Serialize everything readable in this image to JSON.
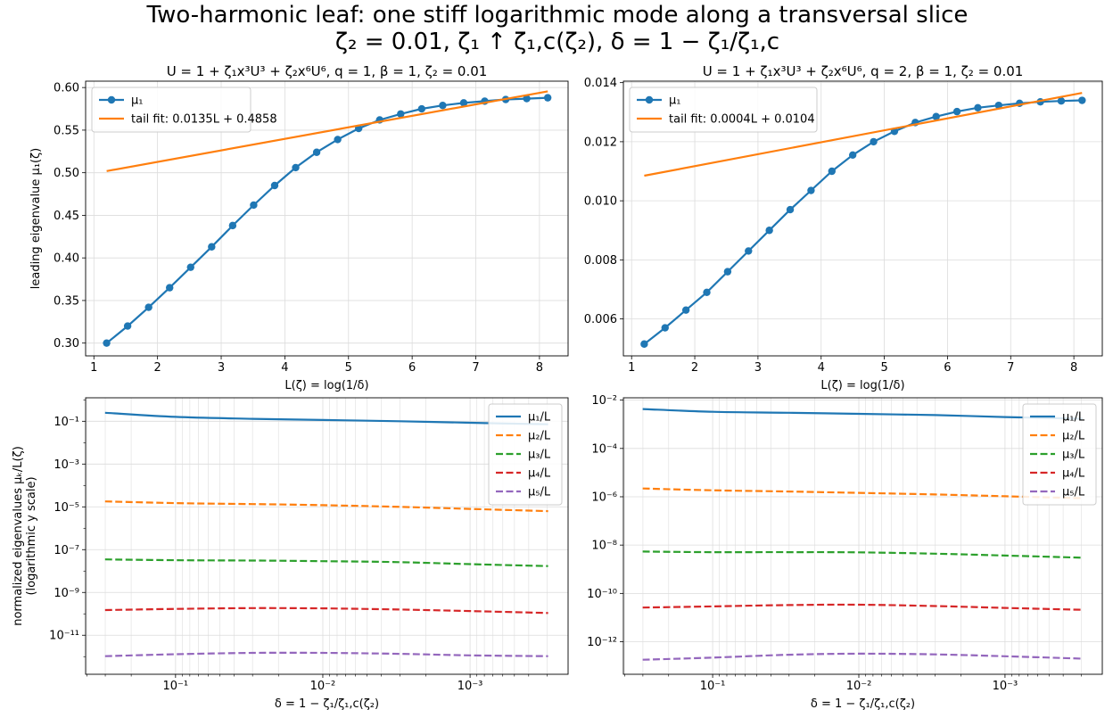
{
  "figure": {
    "suptitle_line1": "Two-harmonic leaf: one stiff logarithmic mode along a transversal slice",
    "suptitle_line2": "ζ₂ = 0.01, ζ₁ ↑ ζ₁,c(ζ₂), δ = 1 − ζ₁/ζ₁,c"
  },
  "chart_data": [
    {
      "type": "line",
      "title": "U = 1 + ζ₁x³U³ + ζ₂x⁶U⁶, q = 1, β = 1, ζ₂ = 0.01",
      "xlabel": "L(ζ) = log(1/δ)",
      "ylabel": "leading eigenvalue μ₁(ζ)",
      "xlim": [
        0.87,
        8.45
      ],
      "ylim": [
        0.285,
        0.6075
      ],
      "xticks": [
        1,
        2,
        3,
        4,
        5,
        6,
        7,
        8
      ],
      "xtick_labels": [
        "1",
        "2",
        "3",
        "4",
        "5",
        "6",
        "7",
        "8"
      ],
      "yticks": [
        0.3,
        0.35,
        0.4,
        0.45,
        0.5,
        0.55,
        0.6
      ],
      "ytick_labels": [
        "0.30",
        "0.35",
        "0.40",
        "0.45",
        "0.50",
        "0.55",
        "0.60"
      ],
      "grid": true,
      "legend_position": "top-left",
      "series": [
        {
          "name": "μ₁",
          "color": "#1f77b4",
          "markers": true,
          "x": [
            1.2,
            1.53,
            1.86,
            2.19,
            2.52,
            2.85,
            3.18,
            3.51,
            3.84,
            4.17,
            4.5,
            4.83,
            5.16,
            5.49,
            5.82,
            6.15,
            6.48,
            6.81,
            7.14,
            7.47,
            7.8,
            8.13
          ],
          "y": [
            0.3,
            0.32,
            0.342,
            0.365,
            0.389,
            0.413,
            0.438,
            0.462,
            0.485,
            0.506,
            0.524,
            0.539,
            0.552,
            0.562,
            0.569,
            0.575,
            0.579,
            0.582,
            0.584,
            0.586,
            0.587,
            0.588
          ]
        },
        {
          "name": "tail fit: 0.0135L + 0.4858",
          "color": "#ff7f0e",
          "markers": false,
          "x": [
            1.2,
            8.13
          ],
          "y": [
            0.502,
            0.5956
          ]
        }
      ]
    },
    {
      "type": "line",
      "title": "U = 1 + ζ₁x³U³ + ζ₂x⁶U⁶, q = 2, β = 1, ζ₂ = 0.01",
      "xlabel": "L(ζ) = log(1/δ)",
      "ylabel": "",
      "xlim": [
        0.87,
        8.45
      ],
      "ylim": [
        0.00475,
        0.01405
      ],
      "xticks": [
        1,
        2,
        3,
        4,
        5,
        6,
        7,
        8
      ],
      "xtick_labels": [
        "1",
        "2",
        "3",
        "4",
        "5",
        "6",
        "7",
        "8"
      ],
      "yticks": [
        0.006,
        0.008,
        0.01,
        0.012,
        0.014
      ],
      "ytick_labels": [
        "0.006",
        "0.008",
        "0.010",
        "0.012",
        "0.014"
      ],
      "grid": true,
      "legend_position": "top-left",
      "series": [
        {
          "name": "μ₁",
          "color": "#1f77b4",
          "markers": true,
          "x": [
            1.2,
            1.53,
            1.86,
            2.19,
            2.52,
            2.85,
            3.18,
            3.51,
            3.84,
            4.17,
            4.5,
            4.83,
            5.16,
            5.49,
            5.82,
            6.15,
            6.48,
            6.81,
            7.14,
            7.47,
            7.8,
            8.13
          ],
          "y": [
            0.00515,
            0.0057,
            0.0063,
            0.0069,
            0.0076,
            0.0083,
            0.009,
            0.0097,
            0.01035,
            0.011,
            0.01155,
            0.012,
            0.01235,
            0.01265,
            0.01285,
            0.01302,
            0.01315,
            0.01323,
            0.0133,
            0.01335,
            0.01338,
            0.0134
          ]
        },
        {
          "name": "tail fit: 0.0004L + 0.0104",
          "color": "#ff7f0e",
          "markers": false,
          "x": [
            1.2,
            8.13
          ],
          "y": [
            0.01085,
            0.01365
          ]
        }
      ]
    },
    {
      "type": "line",
      "title": "",
      "xlabel": "δ = 1 − ζ₁/ζ₁,c(ζ₂)",
      "ylabel": "normalized eigenvalues μₖ/L(ζ)",
      "ylabel2": "(logarithmic y scale)",
      "xscale": "log",
      "xreversed": true,
      "yscale": "log",
      "xlim": [
        0.408,
        0.000216
      ],
      "ylim": [
        1.5e-13,
        1.25
      ],
      "xticks": [
        0.1,
        0.01,
        0.001
      ],
      "xtick_labels": [
        "10⁻¹",
        "10⁻²",
        "10⁻³"
      ],
      "yticks": [
        1e-11,
        1e-09,
        1e-07,
        1e-05,
        0.001,
        0.1
      ],
      "ytick_labels": [
        "10⁻¹¹",
        "10⁻⁹",
        "10⁻⁷",
        "10⁻⁵",
        "10⁻³",
        "10⁻¹"
      ],
      "grid": true,
      "legend_position": "top-right",
      "series": [
        {
          "name": "μ₁/L",
          "color": "#1f77b4",
          "dashed": false,
          "x": [
            0.3012,
            0.1,
            0.03,
            0.01,
            0.003,
            0.001,
            0.000295
          ],
          "y": [
            0.25,
            0.16,
            0.13,
            0.115,
            0.1,
            0.085,
            0.072
          ]
        },
        {
          "name": "μ₂/L",
          "color": "#ff7f0e",
          "dashed": true,
          "x": [
            0.3012,
            0.1,
            0.03,
            0.01,
            0.003,
            0.001,
            0.000295
          ],
          "y": [
            1.8e-05,
            1.5e-05,
            1.35e-05,
            1.2e-05,
            1e-05,
            8e-06,
            6.3e-06
          ]
        },
        {
          "name": "μ₃/L",
          "color": "#2ca02c",
          "dashed": true,
          "x": [
            0.3012,
            0.1,
            0.03,
            0.01,
            0.003,
            0.001,
            0.000295
          ],
          "y": [
            3.5e-08,
            3.2e-08,
            3.1e-08,
            2.9e-08,
            2.6e-08,
            2.1e-08,
            1.7e-08
          ]
        },
        {
          "name": "μ₄/L",
          "color": "#d62728",
          "dashed": true,
          "x": [
            0.3012,
            0.1,
            0.03,
            0.01,
            0.003,
            0.001,
            0.000295
          ],
          "y": [
            1.5e-10,
            1.7e-10,
            1.85e-10,
            1.8e-10,
            1.6e-10,
            1.35e-10,
            1.1e-10
          ]
        },
        {
          "name": "μ₅/L",
          "color": "#9467bd",
          "dashed": true,
          "x": [
            0.3012,
            0.1,
            0.03,
            0.01,
            0.003,
            0.001,
            0.000295
          ],
          "y": [
            1.05e-12,
            1.3e-12,
            1.5e-12,
            1.5e-12,
            1.35e-12,
            1.15e-12,
            1.05e-12
          ]
        }
      ]
    },
    {
      "type": "line",
      "title": "",
      "xlabel": "δ = 1 − ζ₁/ζ₁,c(ζ₂)",
      "ylabel": "",
      "xscale": "log",
      "xreversed": true,
      "yscale": "log",
      "xlim": [
        0.408,
        0.000216
      ],
      "ylim": [
        4.5e-14,
        0.0125
      ],
      "xticks": [
        0.1,
        0.01,
        0.001
      ],
      "xtick_labels": [
        "10⁻¹",
        "10⁻²",
        "10⁻³"
      ],
      "yticks": [
        1e-12,
        1e-10,
        1e-08,
        1e-06,
        0.0001,
        0.01
      ],
      "ytick_labels": [
        "10⁻¹²",
        "10⁻¹⁰",
        "10⁻⁸",
        "10⁻⁶",
        "10⁻⁴",
        "10⁻²"
      ],
      "grid": true,
      "legend_position": "top-right",
      "series": [
        {
          "name": "μ₁/L",
          "color": "#1f77b4",
          "dashed": false,
          "x": [
            0.3012,
            0.1,
            0.03,
            0.01,
            0.003,
            0.001,
            0.000295
          ],
          "y": [
            0.0043,
            0.0033,
            0.003,
            0.0027,
            0.0024,
            0.002,
            0.0017
          ]
        },
        {
          "name": "μ₂/L",
          "color": "#ff7f0e",
          "dashed": true,
          "x": [
            0.3012,
            0.1,
            0.03,
            0.01,
            0.003,
            0.001,
            0.000295
          ],
          "y": [
            2.2e-06,
            1.85e-06,
            1.65e-06,
            1.45e-06,
            1.25e-06,
            1.05e-06,
            8.7e-07
          ]
        },
        {
          "name": "μ₃/L",
          "color": "#2ca02c",
          "dashed": true,
          "x": [
            0.3012,
            0.1,
            0.03,
            0.01,
            0.003,
            0.001,
            0.000295
          ],
          "y": [
            5.4e-09,
            5.1e-09,
            5.1e-09,
            5e-09,
            4.4e-09,
            3.7e-09,
            3e-09
          ]
        },
        {
          "name": "μ₄/L",
          "color": "#d62728",
          "dashed": true,
          "x": [
            0.3012,
            0.1,
            0.03,
            0.01,
            0.003,
            0.001,
            0.000295
          ],
          "y": [
            2.6e-11,
            2.9e-11,
            3.3e-11,
            3.4e-11,
            3e-11,
            2.5e-11,
            2.1e-11
          ]
        },
        {
          "name": "μ₅/L",
          "color": "#9467bd",
          "dashed": true,
          "x": [
            0.3012,
            0.1,
            0.03,
            0.01,
            0.003,
            0.001,
            0.000295
          ],
          "y": [
            1.8e-13,
            2.2e-13,
            2.9e-13,
            3.2e-13,
            3e-13,
            2.5e-13,
            2e-13
          ]
        }
      ]
    }
  ]
}
